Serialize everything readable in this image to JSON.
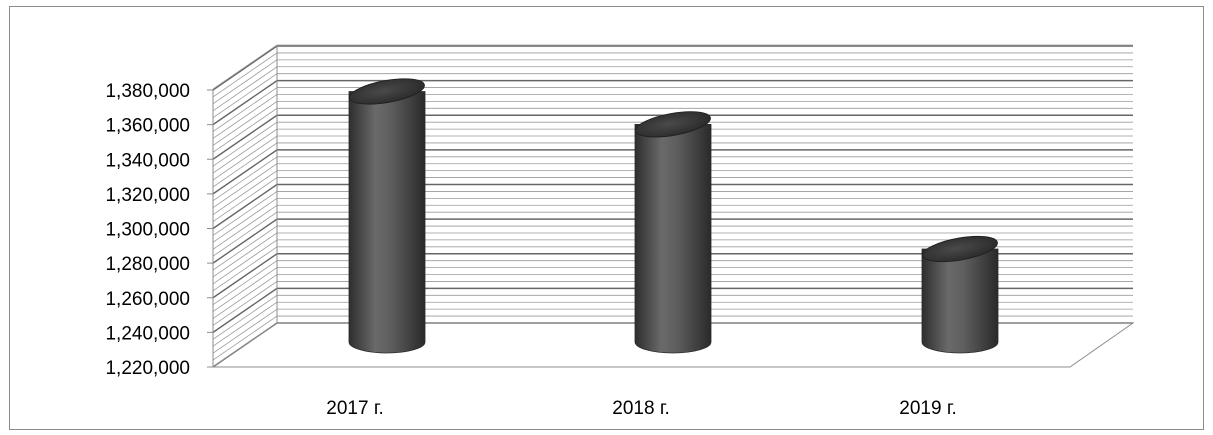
{
  "chart_data": {
    "type": "bar",
    "style": "3d-cylinder",
    "categories": [
      "2017 г.",
      "2018 г.",
      "2019 г."
    ],
    "values": [
      1378000,
      1359000,
      1287000
    ],
    "ylim": [
      1220000,
      1380000
    ],
    "yticks": [
      "1,220,000",
      "1,240,000",
      "1,260,000",
      "1,280,000",
      "1,300,000",
      "1,320,000",
      "1,340,000",
      "1,360,000",
      "1,380,000"
    ],
    "ytick_values": [
      1220000,
      1240000,
      1260000,
      1280000,
      1300000,
      1320000,
      1340000,
      1360000,
      1380000
    ],
    "grid": true,
    "bar_color": "#5a5a5a",
    "grid_color": "#8c8c8c"
  }
}
